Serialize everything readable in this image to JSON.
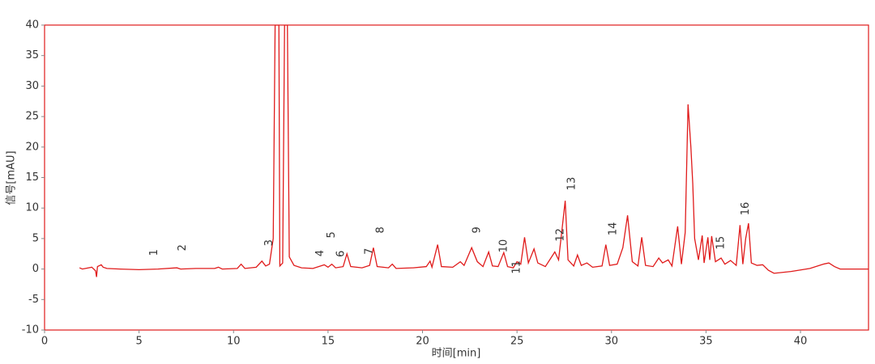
{
  "chart_data": {
    "type": "line",
    "xlabel": "时间[min]",
    "ylabel": "信号[mAU]",
    "color": "#e01b1b",
    "x": [
      1.85,
      2.0,
      2.5,
      2.7,
      2.75,
      2.8,
      3.0,
      3.1,
      3.3,
      4,
      5,
      6,
      7,
      7.2,
      8,
      9,
      9.2,
      9.4,
      10.2,
      10.4,
      10.6,
      11.2,
      11.5,
      11.7,
      11.9,
      12.1,
      12.2,
      12.4,
      12.45,
      12.6,
      12.7,
      12.85,
      12.95,
      13.2,
      13.6,
      14.2,
      14.6,
      14.8,
      15.0,
      15.2,
      15.4,
      15.8,
      16.0,
      16.2,
      16.8,
      17.2,
      17.4,
      17.6,
      18.2,
      18.4,
      18.6,
      19.5,
      20.2,
      20.4,
      20.5,
      20.8,
      21,
      21.6,
      22.0,
      22.2,
      22.6,
      22.9,
      23.2,
      23.5,
      23.7,
      24.0,
      24.3,
      24.5,
      24.8,
      25.0,
      25.2,
      25.4,
      25.6,
      25.9,
      26.1,
      26.5,
      27.0,
      27.2,
      27.4,
      27.55,
      27.7,
      28.0,
      28.2,
      28.4,
      28.7,
      29.0,
      29.5,
      29.7,
      29.9,
      30.3,
      30.6,
      30.85,
      31.1,
      31.4,
      31.6,
      31.8,
      32.2,
      32.5,
      32.7,
      33.0,
      33.2,
      33.5,
      33.7,
      33.9,
      34.05,
      34.2,
      34.3,
      34.4,
      34.6,
      34.8,
      34.9,
      35.1,
      35.2,
      35.3,
      35.5,
      35.8,
      36,
      36.3,
      36.6,
      36.8,
      36.95,
      37.1,
      37.25,
      37.4,
      37.7,
      38,
      38.3,
      38.6,
      39.5,
      40.5,
      41.2,
      41.5,
      41.8,
      42.1,
      43.6
    ],
    "values": [
      0.2,
      0,
      0.3,
      -0.3,
      -1.3,
      0.4,
      0.7,
      0.3,
      0.1,
      0,
      -0.1,
      0,
      0.2,
      0,
      0.1,
      0.1,
      0.3,
      0,
      0.1,
      0.8,
      0.1,
      0.3,
      1.3,
      0.5,
      0.8,
      5,
      40,
      40,
      0.5,
      1,
      40,
      40,
      2,
      0.6,
      0.2,
      0.1,
      0.5,
      0.7,
      0.3,
      0.8,
      0.2,
      0.4,
      2.5,
      0.4,
      0.2,
      0.6,
      3.5,
      0.4,
      0.2,
      0.8,
      0.1,
      0.2,
      0.4,
      1.3,
      0.3,
      4,
      0.4,
      0.3,
      1.2,
      0.6,
      3.5,
      1.2,
      0.4,
      2.8,
      0.5,
      0.4,
      2.7,
      0.4,
      0.2,
      1.2,
      0.8,
      5.2,
      1,
      3.3,
      1.0,
      0.4,
      2.8,
      1.5,
      7,
      11.2,
      1.5,
      0.5,
      2.3,
      0.6,
      1.0,
      0.3,
      0.5,
      4.0,
      0.6,
      0.8,
      3.5,
      8.8,
      1.2,
      0.5,
      5.2,
      0.6,
      0.4,
      1.8,
      1.0,
      1.5,
      0.5,
      7.0,
      0.8,
      6,
      27,
      20,
      14,
      5,
      1.5,
      5.5,
      1.0,
      5.2,
      1.5,
      5.4,
      1.2,
      1.8,
      0.8,
      1.4,
      0.6,
      7.2,
      0.8,
      5,
      7.5,
      1.0,
      0.6,
      0.7,
      -0.2,
      -0.7,
      -0.4,
      0.1,
      0.8,
      1.0,
      0.4,
      0,
      0
    ],
    "xlim": [
      0,
      43.6
    ],
    "ylim": [
      -10,
      40
    ],
    "xticks": [
      0,
      5,
      10,
      15,
      20,
      25,
      30,
      35,
      40
    ],
    "yticks": [
      -10,
      -5,
      0,
      5,
      10,
      15,
      20,
      25,
      30,
      35,
      40
    ],
    "annotations": [
      {
        "text": "1",
        "x": 5.8,
        "y": 2.7
      },
      {
        "text": "2",
        "x": 7.3,
        "y": 3.5
      },
      {
        "text": "3",
        "x": 11.9,
        "y": 4.3
      },
      {
        "text": "4",
        "x": 14.6,
        "y": 2.6
      },
      {
        "text": "5",
        "x": 15.2,
        "y": 5.6
      },
      {
        "text": "6",
        "x": 15.7,
        "y": 2.5
      },
      {
        "text": "7",
        "x": 17.2,
        "y": 2.9
      },
      {
        "text": "8",
        "x": 17.8,
        "y": 6.4
      },
      {
        "text": "9",
        "x": 22.9,
        "y": 6.4
      },
      {
        "text": "10",
        "x": 24.3,
        "y": 3.8
      },
      {
        "text": "11",
        "x": 25.0,
        "y": 0.3
      },
      {
        "text": "12",
        "x": 27.3,
        "y": 5.6
      },
      {
        "text": "13",
        "x": 27.9,
        "y": 14
      },
      {
        "text": "14",
        "x": 30.1,
        "y": 6.6
      },
      {
        "text": "15",
        "x": 35.8,
        "y": 4.3
      },
      {
        "text": "16",
        "x": 37.1,
        "y": 9.9
      }
    ]
  }
}
